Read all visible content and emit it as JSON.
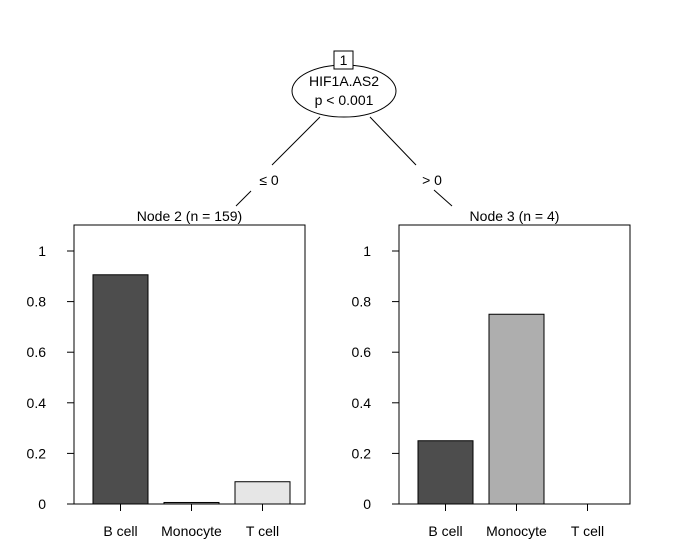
{
  "tree": {
    "root": {
      "id": "1",
      "variable": "HIF1A.AS2",
      "pvalue": "p < 0.001"
    },
    "left_edge_label": "≤ 0",
    "right_edge_label": "> 0"
  },
  "chart_data": [
    {
      "type": "bar",
      "title": "Node 2 (n = 159)",
      "categories": [
        "B cell",
        "Monocyte",
        "T cell"
      ],
      "values": [
        0.906,
        0.006,
        0.088
      ],
      "colors": [
        "#4d4d4d",
        "#aeaeae",
        "#e6e6e6"
      ],
      "ylim": [
        0,
        1
      ],
      "yticks": [
        "0",
        "0.2",
        "0.4",
        "0.6",
        "0.8",
        "1"
      ]
    },
    {
      "type": "bar",
      "title": "Node 3 (n = 4)",
      "categories": [
        "B cell",
        "Monocyte",
        "T cell"
      ],
      "values": [
        0.25,
        0.75,
        0.0
      ],
      "colors": [
        "#4d4d4d",
        "#aeaeae",
        "#e6e6e6"
      ],
      "ylim": [
        0,
        1
      ],
      "yticks": [
        "0",
        "0.2",
        "0.4",
        "0.6",
        "0.8",
        "1"
      ]
    }
  ]
}
